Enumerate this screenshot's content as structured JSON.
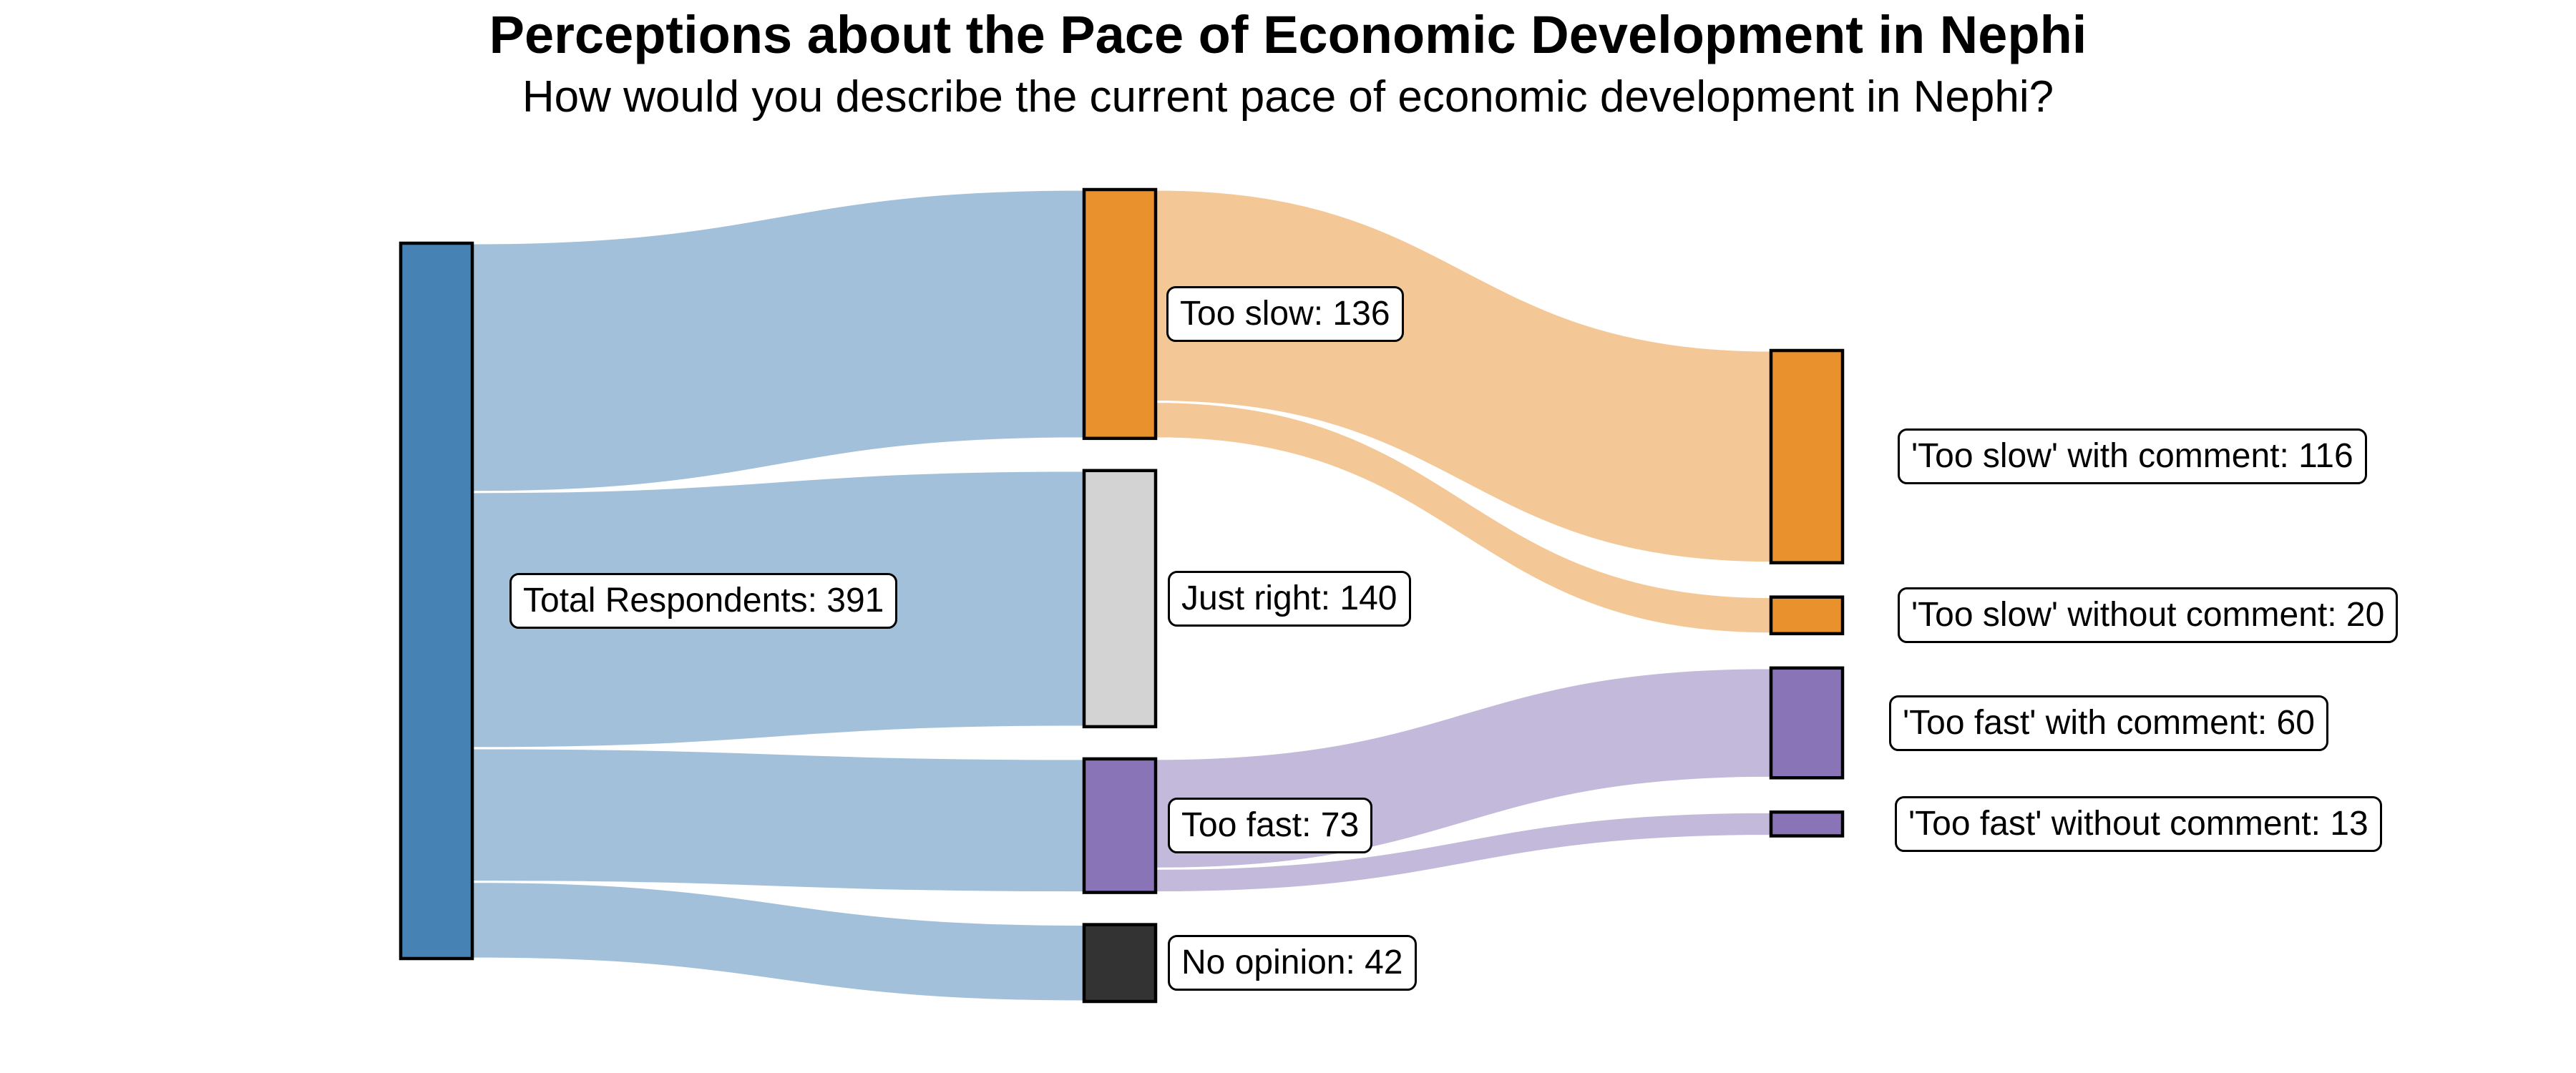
{
  "title": "Perceptions about the Pace of Economic Development in Nephi",
  "subtitle": "How would you describe the current pace of economic development in Nephi?",
  "colors": {
    "blue": "#4682b4",
    "orange": "#e8912d",
    "gray": "#d3d3d3",
    "dark": "#333333",
    "purple": "#8874b6",
    "node_border": "#000000",
    "link_opacity": 0.5,
    "background": "#ffffff"
  },
  "chart_data": {
    "type": "sankey",
    "title": "Perceptions about the Pace of Economic Development in Nephi",
    "subtitle": "How would you describe the current pace of economic development in Nephi?",
    "unit": "respondents",
    "total": 391,
    "nodes": [
      {
        "id": "total",
        "label": "Total Respondents: 391",
        "name": "Total Respondents",
        "value": 391,
        "column": 0,
        "color_key": "blue"
      },
      {
        "id": "too_slow",
        "label": "Too slow: 136",
        "name": "Too slow",
        "value": 136,
        "column": 1,
        "color_key": "orange"
      },
      {
        "id": "just_right",
        "label": "Just right: 140",
        "name": "Just right",
        "value": 140,
        "column": 1,
        "color_key": "gray"
      },
      {
        "id": "too_fast",
        "label": "Too fast: 73",
        "name": "Too fast",
        "value": 73,
        "column": 1,
        "color_key": "purple"
      },
      {
        "id": "no_opinion",
        "label": "No opinion: 42",
        "name": "No opinion",
        "value": 42,
        "column": 1,
        "color_key": "dark"
      },
      {
        "id": "ts_with",
        "label": "'Too slow' with comment: 116",
        "name": "'Too slow' with comment",
        "value": 116,
        "column": 2,
        "color_key": "orange"
      },
      {
        "id": "ts_without",
        "label": "'Too slow' without comment: 20",
        "name": "'Too slow' without comment",
        "value": 20,
        "column": 2,
        "color_key": "orange"
      },
      {
        "id": "tf_with",
        "label": "'Too fast' with comment: 60",
        "name": "'Too fast' with comment",
        "value": 60,
        "column": 2,
        "color_key": "purple"
      },
      {
        "id": "tf_without",
        "label": "'Too fast' without comment: 13",
        "name": "'Too fast' without comment",
        "value": 13,
        "column": 2,
        "color_key": "purple"
      }
    ],
    "links": [
      {
        "source": "total",
        "target": "too_slow",
        "value": 136
      },
      {
        "source": "total",
        "target": "just_right",
        "value": 140
      },
      {
        "source": "total",
        "target": "too_fast",
        "value": 73
      },
      {
        "source": "total",
        "target": "no_opinion",
        "value": 42
      },
      {
        "source": "too_slow",
        "target": "ts_with",
        "value": 116
      },
      {
        "source": "too_slow",
        "target": "ts_without",
        "value": 20
      },
      {
        "source": "too_fast",
        "target": "tf_with",
        "value": 60
      },
      {
        "source": "too_fast",
        "target": "tf_without",
        "value": 13
      }
    ]
  }
}
